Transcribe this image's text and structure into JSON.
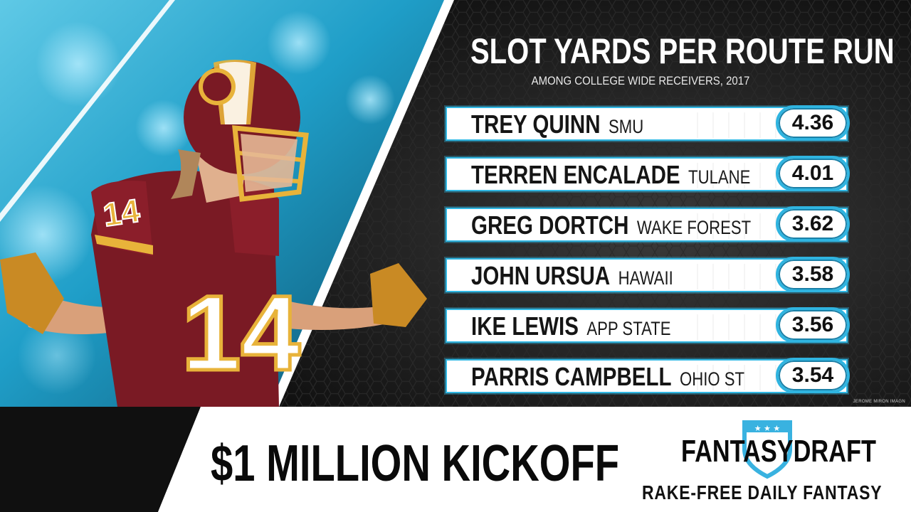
{
  "title": "SLOT YARDS PER ROUTE RUN",
  "subtitle": "AMONG COLLEGE WIDE RECEIVERS, 2017",
  "colors": {
    "accent": "#30b7e3",
    "jersey": "#7a1a24",
    "gold": "#e8b33a",
    "banner": "#ffffff"
  },
  "rows": [
    {
      "name": "TREY QUINN",
      "school": "SMU",
      "value": "4.36"
    },
    {
      "name": "TERREN ENCALADE",
      "school": "TULANE",
      "value": "4.01"
    },
    {
      "name": "GREG DORTCH",
      "school": "WAKE FOREST",
      "value": "3.62"
    },
    {
      "name": "JOHN URSUA",
      "school": "HAWAII",
      "value": "3.58"
    },
    {
      "name": "IKE LEWIS",
      "school": "APP STATE",
      "value": "3.56"
    },
    {
      "name": "PARRIS CAMPBELL",
      "school": "OHIO ST",
      "value": "3.54"
    }
  ],
  "credit": "JEROME MIRON IMAGN",
  "player": {
    "jersey_number": "14",
    "helmet_logo": "redskins-helmet-logo"
  },
  "banner": {
    "headline": "$1 MILLION KICKOFF",
    "brand": "FANTASYDRAFT",
    "tagline": "RAKE-FREE DAILY FANTASY",
    "shield_icon": "star-shield-icon"
  }
}
